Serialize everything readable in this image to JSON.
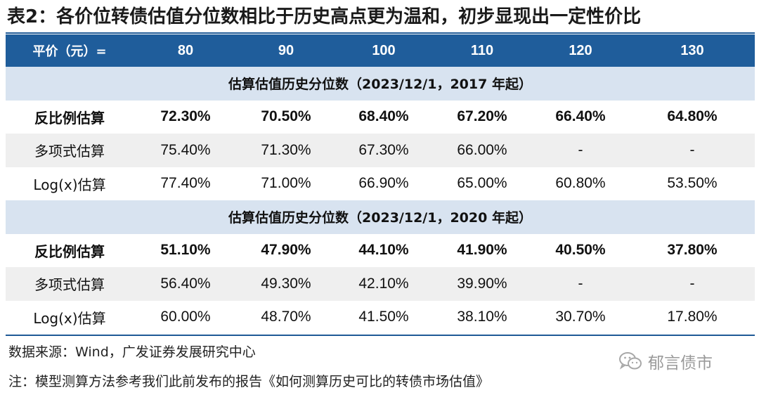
{
  "title": "表2：各价位转债估值分位数相比于历史高点更为温和，初步显现出一定性价比",
  "header": {
    "label": "平价（元）=",
    "columns": [
      "80",
      "90",
      "100",
      "110",
      "120",
      "130"
    ]
  },
  "sections": [
    {
      "title": "估算估值历史分位数（2023/12/1，2017 年起）",
      "rows": [
        {
          "label": "反比例估算",
          "values": [
            "72.30%",
            "70.50%",
            "68.40%",
            "67.20%",
            "66.40%",
            "64.80%"
          ]
        },
        {
          "label": "多项式估算",
          "values": [
            "75.40%",
            "71.30%",
            "67.30%",
            "66.00%",
            "-",
            "-"
          ]
        },
        {
          "label": "Log(x)估算",
          "values": [
            "77.40%",
            "71.00%",
            "66.90%",
            "65.00%",
            "60.80%",
            "53.50%"
          ]
        }
      ]
    },
    {
      "title": "估算估值历史分位数（2023/12/1，2020 年起）",
      "rows": [
        {
          "label": "反比例估算",
          "values": [
            "51.10%",
            "47.90%",
            "44.10%",
            "41.90%",
            "40.50%",
            "37.80%"
          ]
        },
        {
          "label": "多项式估算",
          "values": [
            "56.40%",
            "49.30%",
            "42.10%",
            "39.90%",
            "-",
            "-"
          ]
        },
        {
          "label": "Log(x)估算",
          "values": [
            "60.00%",
            "48.70%",
            "41.50%",
            "38.10%",
            "30.70%",
            "17.80%"
          ]
        }
      ]
    }
  ],
  "source": "数据来源：Wind，广发证券发展研究中心",
  "note": "注：模型测算方法参考我们此前发布的报告《如何测算历史可比的转债市场估值》",
  "watermark": {
    "text": "郁言债市",
    "icon": "wechat-icon"
  },
  "colors": {
    "header_bg": "#1f5d9b",
    "section_bg": "#d8e3f0",
    "shaded_row": "#efefef",
    "rule": "#1f5a96"
  }
}
